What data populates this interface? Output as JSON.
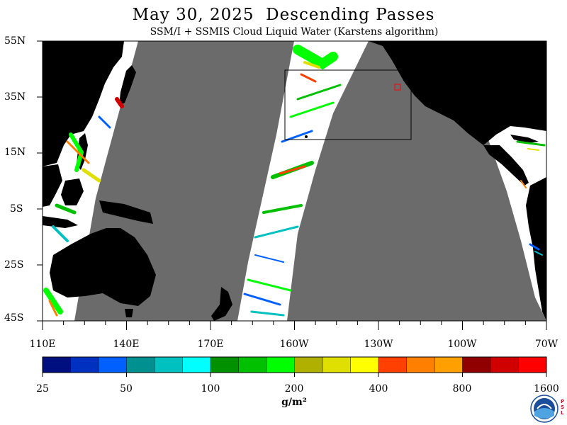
{
  "header": {
    "title": "May 30, 2025  Descending Passes",
    "subtitle": "SSM/I + SSMIS Cloud Liquid Water (Karstens algorithm)"
  },
  "axes": {
    "lat_labels": [
      "55N",
      "35N",
      "15N",
      "5S",
      "25S",
      "45S"
    ],
    "lon_labels": [
      "110E",
      "140E",
      "170E",
      "160W",
      "130W",
      "100W",
      "70W"
    ]
  },
  "colorbar": {
    "labels": [
      "25",
      "50",
      "100",
      "200",
      "400",
      "800",
      "1600"
    ],
    "units": "g/m²",
    "colors": [
      "#000f80",
      "#0030c0",
      "#0060ff",
      "#009090",
      "#00c0c0",
      "#00ffff",
      "#009000",
      "#00c000",
      "#00ff00",
      "#b0b000",
      "#e0e000",
      "#ffff00",
      "#ff4000",
      "#ff8000",
      "#ffa000",
      "#900000",
      "#d00000",
      "#ff0000"
    ]
  },
  "colors": {
    "ocean_no_data": "#6b6b6b",
    "land": "#000000",
    "clear_sky": "#ffffff"
  },
  "logo": {
    "name": "NOAA",
    "psl_text": "PSL"
  }
}
